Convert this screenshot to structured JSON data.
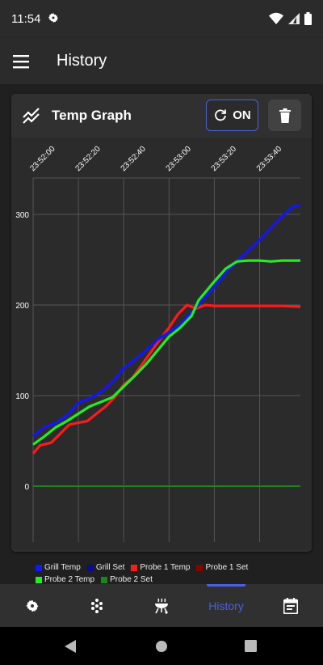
{
  "status_bar": {
    "time": "11:54",
    "icons": [
      "settings-icon",
      "wifi-icon",
      "cell-signal-icon",
      "battery-icon"
    ]
  },
  "app_bar": {
    "title": "History",
    "menu_icon": "hamburger-menu-icon"
  },
  "card": {
    "title": "Temp Graph",
    "icon": "chart-line-icon",
    "refresh_label": "ON",
    "refresh_icon": "refresh-icon",
    "delete_icon": "trash-icon",
    "accent": "#4a64d8"
  },
  "chart_data": {
    "type": "line",
    "x_tick_labels": [
      "23:52:00",
      "23:52:20",
      "23:52:40",
      "23:53:00",
      "23:53:20",
      "23:53:40"
    ],
    "x_ticks_seconds": [
      0,
      20,
      40,
      60,
      80,
      100
    ],
    "xlim_seconds": [
      0,
      118
    ],
    "y_tick_labels": [
      "300",
      "200",
      "100",
      "0"
    ],
    "y_ticks": [
      300,
      200,
      100,
      0
    ],
    "ylim": [
      -20,
      340
    ],
    "grid": true,
    "legend_placement": "bottom",
    "series": [
      {
        "name": "Grill Temp",
        "color": "#1414ff",
        "x": [
          0,
          5,
          10,
          15,
          20,
          25,
          30,
          35,
          40,
          45,
          50,
          55,
          60,
          65,
          70,
          75,
          80,
          85,
          90,
          95,
          100,
          105,
          110,
          115,
          118
        ],
        "y": [
          55,
          65,
          70,
          78,
          92,
          97,
          104,
          115,
          130,
          140,
          150,
          162,
          170,
          178,
          192,
          206,
          220,
          235,
          248,
          260,
          272,
          285,
          298,
          309,
          310
        ]
      },
      {
        "name": "Grill Set",
        "color": "#0a0a9a",
        "x": [],
        "y": []
      },
      {
        "name": "Probe 1 Temp",
        "color": "#ff1a1a",
        "x": [
          0,
          3,
          8,
          12,
          16,
          20,
          24,
          28,
          32,
          36,
          40,
          44,
          48,
          52,
          56,
          60,
          64,
          68,
          72,
          76,
          80,
          90,
          100,
          110,
          118
        ],
        "y": [
          36,
          45,
          48,
          58,
          68,
          70,
          72,
          80,
          88,
          98,
          112,
          120,
          134,
          148,
          162,
          175,
          190,
          200,
          196,
          200,
          199,
          199,
          199,
          199,
          198
        ]
      },
      {
        "name": "Probe 1 Set",
        "color": "#8b0000",
        "x": [],
        "y": []
      },
      {
        "name": "Probe 2 Temp",
        "color": "#22ee22",
        "x": [
          0,
          5,
          10,
          15,
          20,
          25,
          30,
          35,
          40,
          45,
          50,
          55,
          60,
          65,
          70,
          73,
          76,
          80,
          85,
          90,
          95,
          100,
          105,
          110,
          118
        ],
        "y": [
          46,
          55,
          65,
          72,
          80,
          88,
          93,
          98,
          110,
          122,
          135,
          150,
          165,
          175,
          188,
          205,
          214,
          226,
          240,
          248,
          249,
          249,
          248,
          249,
          249
        ]
      },
      {
        "name": "Probe 2 Set",
        "color": "#158a15",
        "x": [
          0,
          118
        ],
        "y": [
          0,
          0
        ]
      }
    ]
  },
  "bottom_nav": {
    "items": [
      {
        "icon": "gear-icon"
      },
      {
        "icon": "pellets-icon"
      },
      {
        "icon": "grill-icon"
      },
      {
        "label": "History",
        "active": true
      },
      {
        "icon": "calendar-icon"
      }
    ]
  },
  "system_nav": {
    "icons": [
      "back-icon",
      "home-icon",
      "recents-icon"
    ]
  }
}
